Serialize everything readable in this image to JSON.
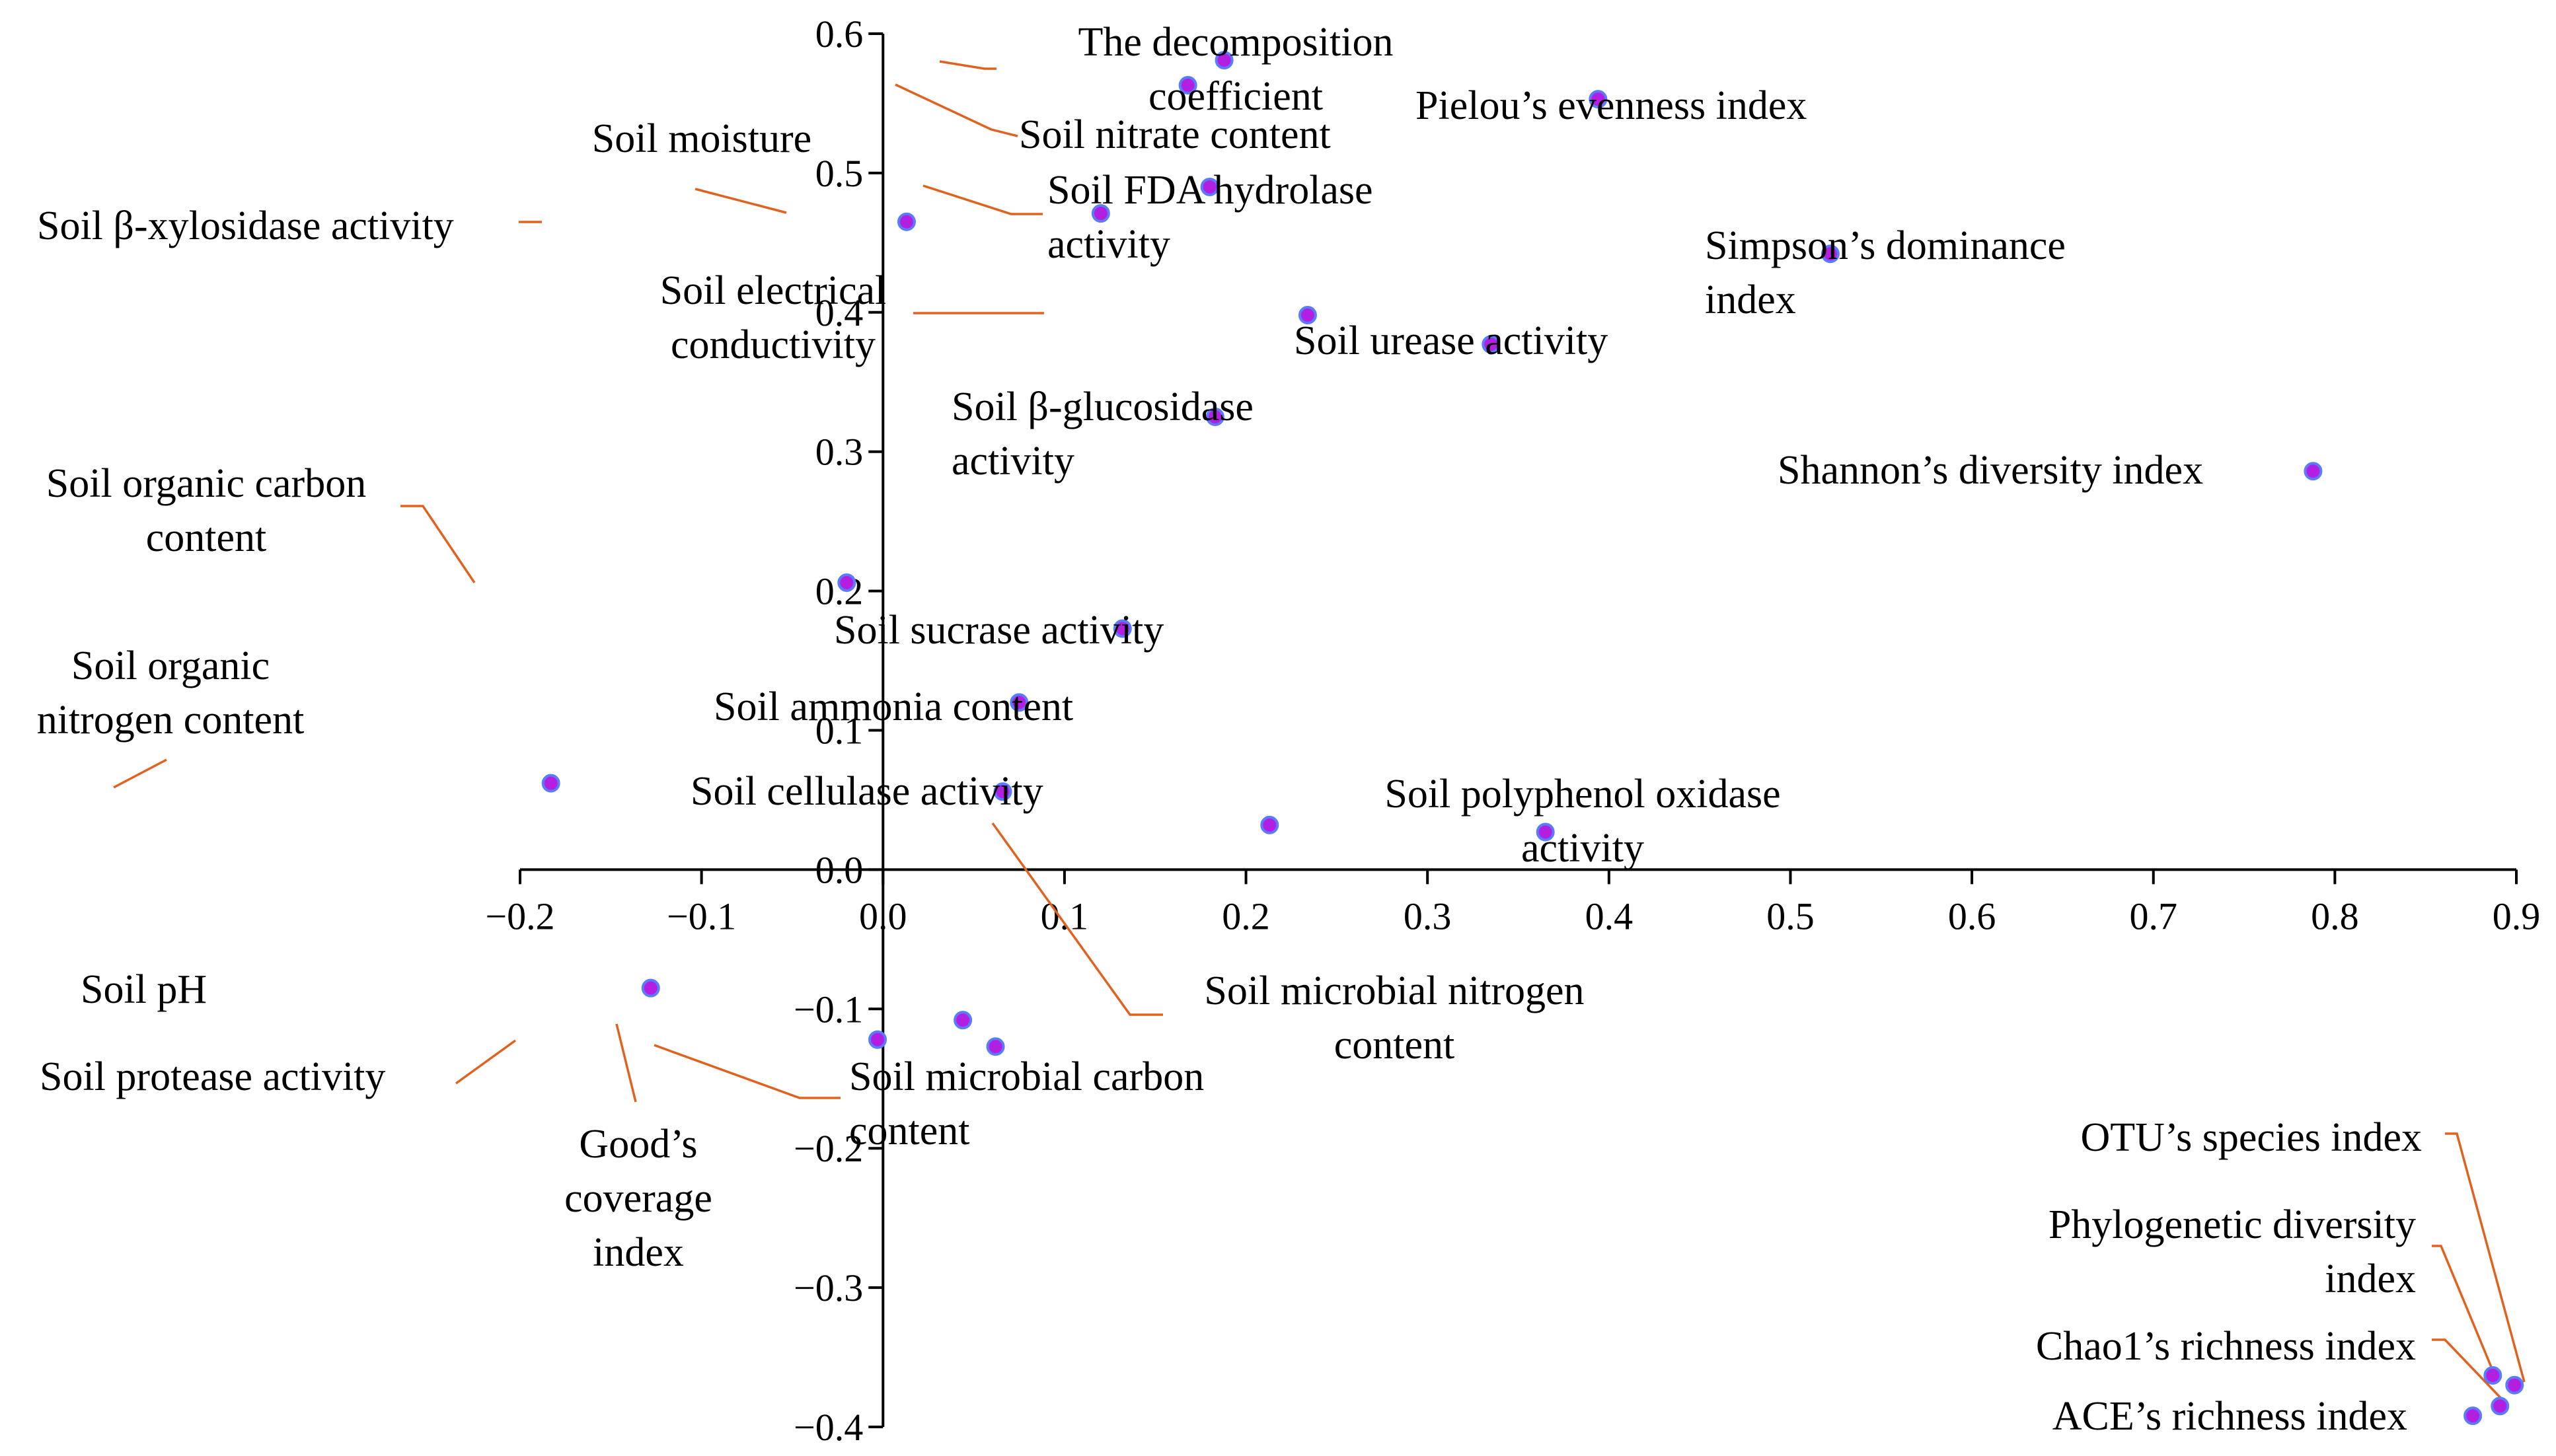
{
  "chart_data": {
    "type": "scatter",
    "title": "",
    "xlabel": "",
    "ylabel": "",
    "xlim": [
      -0.2,
      0.9
    ],
    "ylim": [
      -0.4,
      0.6
    ],
    "x_ticks": [
      "−0.2",
      "−0.1",
      "0.0",
      "0.1",
      "0.2",
      "0.3",
      "0.4",
      "0.5",
      "0.6",
      "0.7",
      "0.8",
      "0.9"
    ],
    "y_ticks": [
      "−0.4",
      "−0.3",
      "−0.2",
      "−0.1",
      "0.0",
      "0.1",
      "0.2",
      "0.3",
      "0.4",
      "0.5",
      "0.6"
    ],
    "grid": false,
    "legend": "none",
    "colors": {
      "point_fill": "#b21fe0",
      "point_edge": "#5a7bff",
      "leader": "#e0621e"
    },
    "points": [
      {
        "label": [
          "The decomposition",
          "coefficient"
        ],
        "x": 0.188,
        "y": 0.581
      },
      {
        "label": [
          "Soil nitrate content"
        ],
        "x": 0.168,
        "y": 0.563
      },
      {
        "label": [
          "Pielou’s evenness index"
        ],
        "x": 0.394,
        "y": 0.553
      },
      {
        "label": [
          "Soil moisture"
        ],
        "x": 0.12,
        "y": 0.471
      },
      {
        "label": [
          "Soil FDA hydrolase",
          "activity"
        ],
        "x": 0.18,
        "y": 0.49
      },
      {
        "label": [
          "Soil β-xylosidase activity"
        ],
        "x": 0.013,
        "y": 0.465
      },
      {
        "label": [
          "Simpson’s dominance",
          "index"
        ],
        "x": 0.522,
        "y": 0.442
      },
      {
        "label": [
          "Soil electrical",
          "conductivity"
        ],
        "x": 0.234,
        "y": 0.398
      },
      {
        "label": [
          "Soil urease activity"
        ],
        "x": 0.335,
        "y": 0.377
      },
      {
        "label": [
          "Soil β-glucosidase",
          "activity"
        ],
        "x": 0.183,
        "y": 0.325
      },
      {
        "label": [
          "Shannon’s diversity index"
        ],
        "x": 0.788,
        "y": 0.286
      },
      {
        "label": [
          "Soil organic carbon",
          "content"
        ],
        "x": -0.02,
        "y": 0.206
      },
      {
        "label": [
          "Soil sucrase activity"
        ],
        "x": 0.132,
        "y": 0.173
      },
      {
        "label": [
          "Soil ammonia content"
        ],
        "x": 0.075,
        "y": 0.12
      },
      {
        "label": [
          "Soil organic",
          "nitrogen content"
        ],
        "x": -0.183,
        "y": 0.062
      },
      {
        "label": [
          "Soil cellulase activity"
        ],
        "x": 0.066,
        "y": 0.056
      },
      {
        "label": [
          "Soil microbial nitrogen",
          "content"
        ],
        "x": 0.213,
        "y": 0.032
      },
      {
        "label": [
          "Soil polyphenol oxidase",
          "activity"
        ],
        "x": 0.365,
        "y": 0.027
      },
      {
        "label": [
          "Soil pH"
        ],
        "x": -0.128,
        "y": -0.085
      },
      {
        "label": [
          "Soil protease activity"
        ],
        "x": -0.003,
        "y": -0.122
      },
      {
        "label": [
          "Good’s",
          "coverage",
          "index"
        ],
        "x": 0.044,
        "y": -0.108
      },
      {
        "label": [
          "Soil microbial carbon",
          "content"
        ],
        "x": 0.062,
        "y": -0.127
      },
      {
        "label": [
          "OTU’s species index"
        ],
        "x": 0.899,
        "y": -0.37
      },
      {
        "label": [
          "Phylogenetic diversity",
          "index"
        ],
        "x": 0.887,
        "y": -0.363
      },
      {
        "label": [
          "Chao1’s richness index"
        ],
        "x": 0.891,
        "y": -0.385
      },
      {
        "label": [
          "ACE’s richness index"
        ],
        "x": 0.876,
        "y": -0.392
      }
    ]
  }
}
